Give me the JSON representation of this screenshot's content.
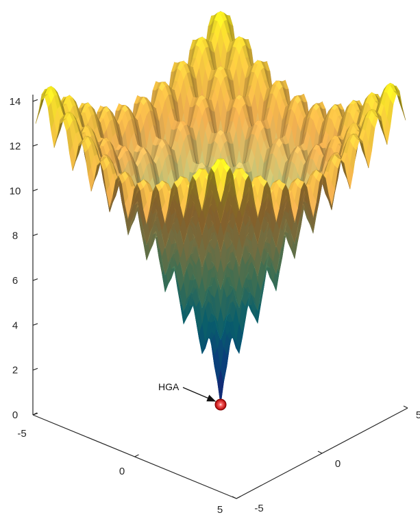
{
  "chart_data": {
    "type": "surface",
    "title": "",
    "xlabel": "",
    "ylabel": "",
    "zlabel": "",
    "xlim": [
      -5,
      5
    ],
    "ylim": [
      -5,
      5
    ],
    "zlim": [
      0,
      14
    ],
    "x_ticks": [
      "-5",
      "0",
      "5"
    ],
    "y_ticks": [
      "-5",
      "0",
      "5"
    ],
    "z_ticks": [
      "0",
      "2",
      "4",
      "6",
      "8",
      "10",
      "12",
      "14"
    ],
    "colormap": "parula",
    "colors": {
      "low": "#1a3fd0",
      "mid_low": "#1da3c7",
      "mid": "#8fcf9a",
      "mid_high": "#e9b25a",
      "high": "#f3e21c"
    },
    "grid": false,
    "surface": "Ackley-like multimodal function, global minimum 0 at (0,0), maximum about 14.3 at the corners",
    "point": {
      "x": 0,
      "y": 0,
      "z": 0,
      "color": "#d40000"
    },
    "annotation": {
      "text": "HGA"
    }
  }
}
